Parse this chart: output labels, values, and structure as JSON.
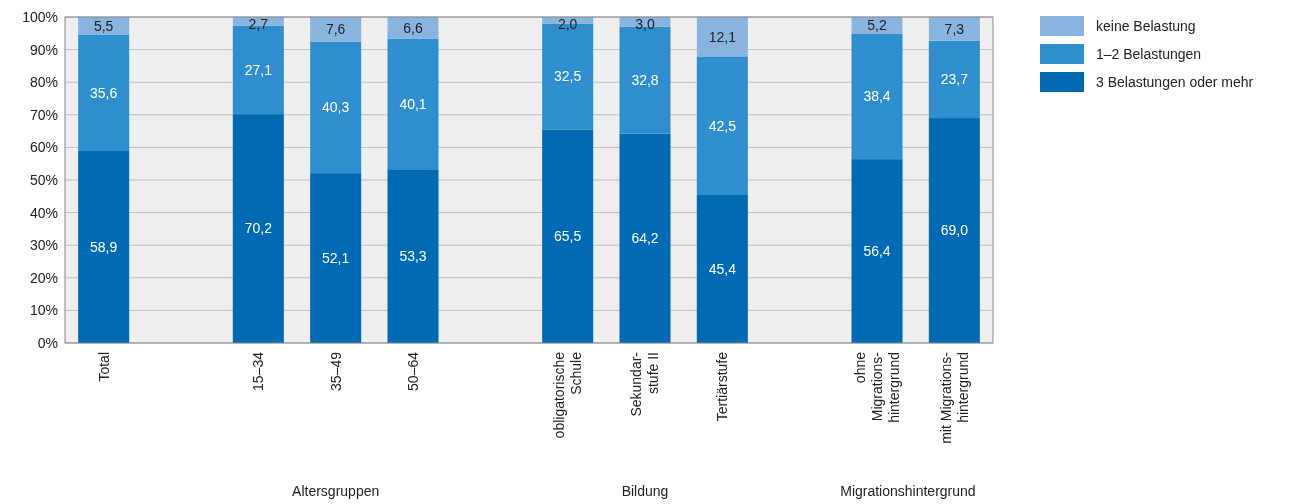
{
  "chart_data": {
    "type": "bar",
    "stacked": true,
    "categories": [
      "Total",
      null,
      "15–34",
      "35–49",
      "50–64",
      null,
      "obligatorische\nSchule",
      "Sekundar-\nstufe II",
      "Tertiärstufe",
      null,
      "ohne\nMigrations-\nhintergrund",
      "mit Migrations-\nhintergrund"
    ],
    "series": [
      {
        "name": "3 Belastungen oder mehr",
        "color": "#006ab4",
        "values": [
          58.9,
          null,
          70.2,
          52.1,
          53.3,
          null,
          65.5,
          64.2,
          45.4,
          null,
          56.4,
          69.0
        ],
        "value_labels": [
          "58,9",
          null,
          "70,2",
          "52,1",
          "53,3",
          null,
          "65,5",
          "64,2",
          "45,4",
          null,
          "56,4",
          "69,0"
        ]
      },
      {
        "name": "1–2 Belastungen",
        "color": "#2f8fce",
        "values": [
          35.6,
          null,
          27.1,
          40.3,
          40.1,
          null,
          32.5,
          32.8,
          42.5,
          null,
          38.4,
          23.7
        ],
        "value_labels": [
          "35,6",
          null,
          "27,1",
          "40,3",
          "40,1",
          null,
          "32,5",
          "32,8",
          "42,5",
          null,
          "38,4",
          "23,7"
        ]
      },
      {
        "name": "keine Belastung",
        "color": "#8ab4e0",
        "values": [
          5.5,
          null,
          2.7,
          7.6,
          6.6,
          null,
          2.0,
          3.0,
          12.1,
          null,
          5.2,
          7.3
        ],
        "value_labels": [
          "5,5",
          null,
          "2,7",
          "7,6",
          "6,6",
          null,
          "2,0",
          "3,0",
          "12,1",
          null,
          "5,2",
          "7,3"
        ]
      }
    ],
    "ylim": [
      0,
      100
    ],
    "yticks": [
      {
        "value": 0,
        "label": "0%"
      },
      {
        "value": 10,
        "label": "10%"
      },
      {
        "value": 20,
        "label": "20%"
      },
      {
        "value": 30,
        "label": "30%"
      },
      {
        "value": 40,
        "label": "40%"
      },
      {
        "value": 50,
        "label": "50%"
      },
      {
        "value": 60,
        "label": "60%"
      },
      {
        "value": 70,
        "label": "70%"
      },
      {
        "value": 80,
        "label": "80%"
      },
      {
        "value": 90,
        "label": "90%"
      },
      {
        "value": 100,
        "label": "100%"
      }
    ],
    "grid": "y",
    "legend": "top right",
    "annotations": [
      "Altersgruppen",
      "Bildung",
      "Migrationshintergrund"
    ]
  }
}
